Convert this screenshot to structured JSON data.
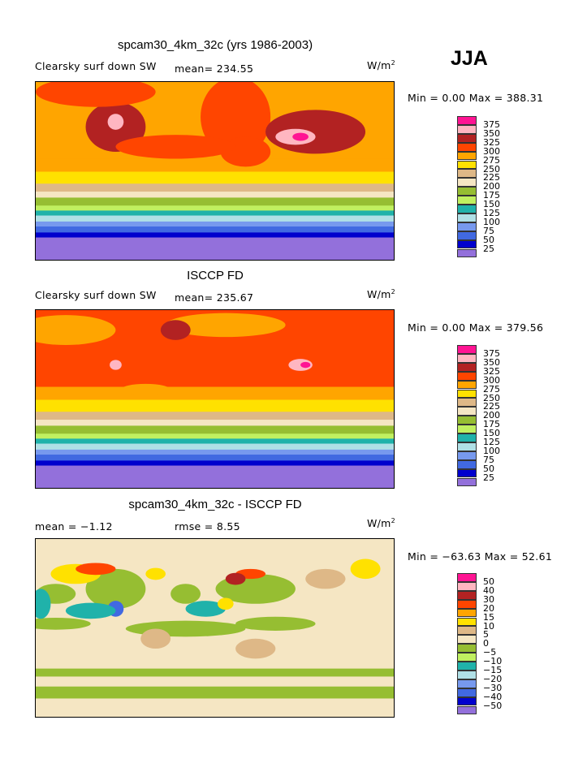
{
  "season": "JJA",
  "units": "W/m",
  "units_exp": "2",
  "colors": [
    "#9370DB",
    "#0000CD",
    "#4169E1",
    "#7799EE",
    "#B0E0E6",
    "#20B2AA",
    "#C0F060",
    "#96BE32",
    "#F5E6C3",
    "#DEB887",
    "#FFE100",
    "#FFA500",
    "#FF4500",
    "#B22222",
    "#FFB6C1",
    "#FF1493"
  ],
  "chart_data": [
    {
      "type": "heatmap",
      "title": "spcam30_4km_32c (yrs 1986-2003)",
      "label": "Clearsky surf down SW",
      "stat1_label": "mean=",
      "stat1": "234.55",
      "range_text": "Min =    0.00 Max = 388.31",
      "levels": [
        "25",
        "50",
        "75",
        "100",
        "125",
        "150",
        "175",
        "200",
        "225",
        "250",
        "275",
        "300",
        "325",
        "350",
        "375"
      ],
      "bands": [
        [
          90,
          13,
          11
        ],
        [
          13,
          0,
          11
        ],
        [
          0,
          -12,
          10
        ],
        [
          -12,
          -20,
          9
        ],
        [
          -20,
          -26,
          8
        ],
        [
          -26,
          -34,
          7
        ],
        [
          -34,
          -39,
          6
        ],
        [
          -39,
          -44,
          5
        ],
        [
          -44,
          -50,
          4
        ],
        [
          -50,
          -55,
          3
        ],
        [
          -55,
          -61,
          2
        ],
        [
          -61,
          -66,
          1
        ],
        [
          -66,
          -90,
          0
        ]
      ],
      "blobs": [
        [
          20,
          55,
          35,
          40,
          12
        ],
        [
          100,
          40,
          50,
          22,
          13
        ],
        [
          -100,
          45,
          30,
          25,
          13
        ],
        [
          -100,
          50,
          8,
          8,
          14
        ],
        [
          80,
          35,
          20,
          8,
          14
        ],
        [
          85,
          35,
          8,
          4,
          15
        ],
        [
          -120,
          80,
          60,
          15,
          12
        ],
        [
          30,
          20,
          25,
          15,
          12
        ],
        [
          -40,
          25,
          60,
          12,
          12
        ]
      ]
    },
    {
      "type": "heatmap",
      "title": "ISCCP FD",
      "label": "Clearsky surf down SW",
      "stat1_label": "mean=",
      "stat1": "235.67",
      "range_text": "Min =    0.00 Max = 379.56",
      "levels": [
        "25",
        "50",
        "75",
        "100",
        "125",
        "150",
        "175",
        "200",
        "225",
        "250",
        "275",
        "300",
        "325",
        "350",
        "375"
      ],
      "bands": [
        [
          90,
          13,
          12
        ],
        [
          13,
          0,
          11
        ],
        [
          0,
          -12,
          10
        ],
        [
          -12,
          -20,
          9
        ],
        [
          -20,
          -26,
          8
        ],
        [
          -26,
          -34,
          7
        ],
        [
          -34,
          -39,
          6
        ],
        [
          -39,
          -44,
          5
        ],
        [
          -44,
          -50,
          4
        ],
        [
          -50,
          -55,
          3
        ],
        [
          -55,
          -61,
          2
        ],
        [
          -61,
          -66,
          1
        ],
        [
          -66,
          -90,
          0
        ]
      ],
      "blobs": [
        [
          -150,
          70,
          50,
          15,
          11
        ],
        [
          10,
          75,
          60,
          12,
          11
        ],
        [
          85,
          35,
          12,
          6,
          14
        ],
        [
          90,
          35,
          5,
          3,
          15
        ],
        [
          -100,
          35,
          6,
          5,
          14
        ],
        [
          -40,
          70,
          15,
          10,
          13
        ],
        [
          -70,
          10,
          25,
          6,
          11
        ]
      ]
    },
    {
      "type": "heatmap",
      "title": "spcam30_4km_32c - ISCCP FD",
      "label": "",
      "stat1_label": "mean =",
      "stat1": "−1.12",
      "stat2_label": "rmse =",
      "stat2": "8.55",
      "range_text": "Min = −63.63 Max =   52.61",
      "levels": [
        "−50",
        "−40",
        "−30",
        "−20",
        "−15",
        "−10",
        "−5",
        "0",
        "5",
        "10",
        "15",
        "20",
        "30",
        "40",
        "50"
      ],
      "bands": [
        [
          90,
          60,
          8
        ],
        [
          60,
          -40,
          8
        ],
        [
          -40,
          -48,
          7
        ],
        [
          -48,
          -58,
          8
        ],
        [
          -58,
          -70,
          7
        ],
        [
          -70,
          -90,
          8
        ]
      ],
      "blobs": [
        [
          -160,
          5,
          35,
          6,
          7
        ],
        [
          -30,
          0,
          60,
          8,
          7
        ],
        [
          60,
          5,
          40,
          7,
          7
        ],
        [
          -100,
          40,
          30,
          20,
          7
        ],
        [
          40,
          40,
          40,
          15,
          7
        ],
        [
          -160,
          35,
          20,
          10,
          7
        ],
        [
          -30,
          35,
          15,
          10,
          7
        ],
        [
          -175,
          25,
          10,
          15,
          5
        ],
        [
          -100,
          20,
          8,
          8,
          2
        ],
        [
          -125,
          18,
          25,
          8,
          5
        ],
        [
          -10,
          20,
          20,
          8,
          5
        ],
        [
          -140,
          55,
          25,
          10,
          10
        ],
        [
          -120,
          60,
          20,
          6,
          12
        ],
        [
          35,
          55,
          15,
          5,
          12
        ],
        [
          20,
          50,
          10,
          6,
          13
        ],
        [
          110,
          50,
          20,
          10,
          9
        ],
        [
          150,
          60,
          15,
          10,
          10
        ],
        [
          40,
          -20,
          20,
          10,
          9
        ],
        [
          -60,
          -10,
          15,
          10,
          9
        ],
        [
          10,
          25,
          8,
          6,
          10
        ],
        [
          -60,
          55,
          10,
          6,
          10
        ]
      ]
    }
  ]
}
